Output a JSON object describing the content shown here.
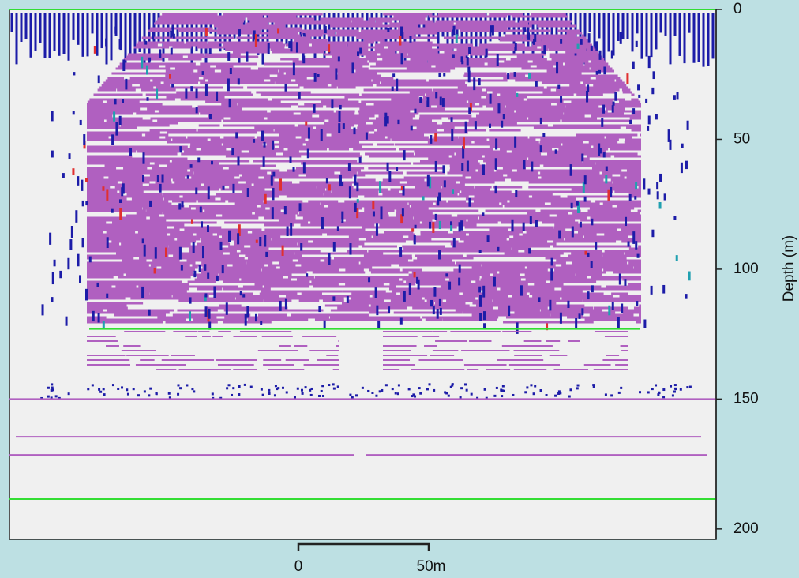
{
  "chart_data": {
    "type": "depth-profile",
    "y_label": "Depth (m)",
    "ylim": [
      0,
      204
    ],
    "yticks": [
      0,
      50,
      100,
      150,
      200
    ],
    "scale_bar": {
      "labels": [
        "0",
        "50m"
      ]
    },
    "lines": [
      {
        "depth": 0,
        "color": "#33dd33"
      },
      {
        "depth": 123,
        "color": "#33dd33"
      },
      {
        "depth": 150,
        "color": "#b060c0"
      },
      {
        "depth": 164.5,
        "color": "#b060c0"
      },
      {
        "depth": 171.5,
        "color": "#b060c0"
      },
      {
        "depth": 188.5,
        "color": "#33dd33"
      }
    ]
  }
}
